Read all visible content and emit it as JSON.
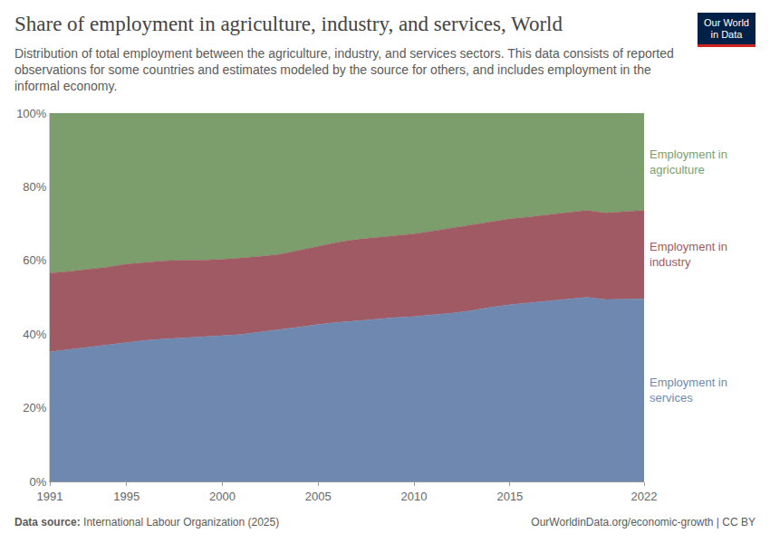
{
  "chart_data": {
    "type": "area",
    "stacked": true,
    "title": "Share of employment in agriculture, industry, and services, World",
    "subtitle": "Distribution of total employment between the agriculture, industry, and services sectors. This data consists of reported observations for some countries and estimates modeled by the source for others, and includes employment in the informal economy.",
    "logo": "Our World in Data",
    "source_label": "Data source:",
    "source": "International Labour Organization (2025)",
    "footer": "OurWorldinData.org/economic-growth | CC BY",
    "x": [
      1991,
      1992,
      1993,
      1994,
      1995,
      1996,
      1997,
      1998,
      1999,
      2000,
      2001,
      2002,
      2003,
      2004,
      2005,
      2006,
      2007,
      2008,
      2009,
      2010,
      2011,
      2012,
      2013,
      2014,
      2015,
      2016,
      2017,
      2018,
      2019,
      2020,
      2021,
      2022
    ],
    "xlim": [
      1991,
      2022
    ],
    "xticks": [
      1991,
      1995,
      2000,
      2005,
      2010,
      2015,
      2022
    ],
    "ylim": [
      0,
      100
    ],
    "yticks": [
      {
        "value": 0,
        "label": "0%"
      },
      {
        "value": 20,
        "label": "20%"
      },
      {
        "value": 40,
        "label": "40%"
      },
      {
        "value": 60,
        "label": "60%"
      },
      {
        "value": 80,
        "label": "80%"
      },
      {
        "value": 100,
        "label": "100%"
      }
    ],
    "grid": true,
    "series": [
      {
        "name": "Employment in services",
        "color": "#6f88b0",
        "values": [
          35.2,
          35.8,
          36.4,
          37.0,
          37.7,
          38.3,
          38.7,
          39.0,
          39.2,
          39.5,
          39.9,
          40.6,
          41.2,
          41.9,
          42.6,
          43.2,
          43.6,
          44.1,
          44.5,
          44.8,
          45.2,
          45.7,
          46.4,
          47.3,
          48.0,
          48.5,
          49.0,
          49.5,
          50.0,
          49.4,
          49.5,
          49.6
        ]
      },
      {
        "name": "Employment in industry",
        "color": "#9f5a63",
        "values": [
          21.4,
          21.2,
          21.2,
          21.2,
          21.3,
          21.2,
          21.2,
          21.1,
          20.9,
          20.8,
          20.8,
          20.5,
          20.5,
          20.9,
          21.3,
          21.7,
          22.1,
          22.1,
          22.1,
          22.4,
          22.8,
          23.1,
          23.2,
          23.2,
          23.3,
          23.3,
          23.4,
          23.5,
          23.6,
          23.5,
          23.7,
          24.0
        ]
      },
      {
        "name": "Employment in agriculture",
        "color": "#7b9e6c",
        "values": [
          43.4,
          43.0,
          42.4,
          41.8,
          41.0,
          40.5,
          40.1,
          39.9,
          39.9,
          39.7,
          39.3,
          38.9,
          38.3,
          37.2,
          36.1,
          35.1,
          34.3,
          33.8,
          33.4,
          32.8,
          32.0,
          31.2,
          30.4,
          29.5,
          28.7,
          28.2,
          27.6,
          27.0,
          26.4,
          27.1,
          26.8,
          26.4
        ]
      }
    ]
  }
}
